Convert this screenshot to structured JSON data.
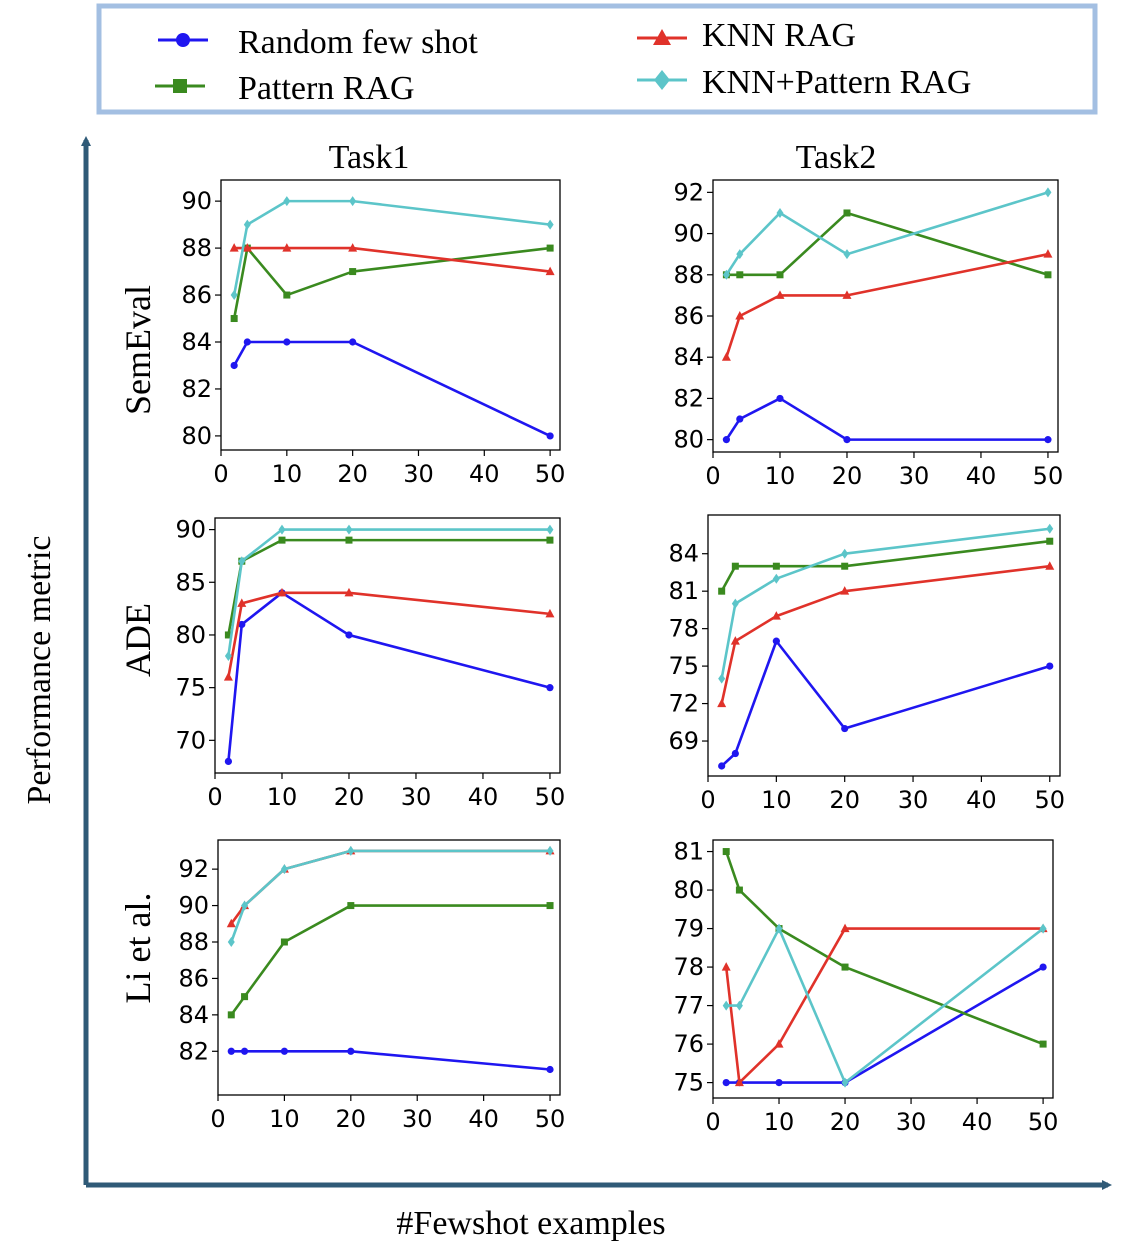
{
  "legend": {
    "entries": [
      {
        "label": "Random few shot",
        "color": "#1f16f0",
        "marker": "circle"
      },
      {
        "label": "Pattern RAG",
        "color": "#3a8a1f",
        "marker": "square"
      },
      {
        "label": "KNN RAG",
        "color": "#e0322a",
        "marker": "triangle"
      },
      {
        "label": "KNN+Pattern RAG",
        "color": "#5cc5c9",
        "marker": "diamond"
      }
    ],
    "border_color": "#a3bfe2"
  },
  "axes_labels": {
    "y": "Performance metric",
    "x": "#Fewshot examples",
    "col_titles": [
      "Task1",
      "Task2"
    ],
    "row_titles": [
      "SemEval",
      "ADE",
      "Li et al."
    ],
    "arrow_color": "#2f5a77"
  },
  "chart_data": [
    {
      "type": "line",
      "row": 0,
      "col": 0,
      "x": [
        2,
        4,
        10,
        20,
        50
      ],
      "xlim": [
        0,
        51.5
      ],
      "ylim": [
        79.4,
        90.9
      ],
      "xticks": [
        0,
        10,
        20,
        30,
        40,
        50
      ],
      "yticks": [
        80,
        82,
        84,
        86,
        88,
        90
      ],
      "series": [
        {
          "name": "Random few shot",
          "values": [
            83,
            84,
            84,
            84,
            80
          ]
        },
        {
          "name": "Pattern RAG",
          "values": [
            85,
            88,
            86,
            87,
            88
          ]
        },
        {
          "name": "KNN RAG",
          "values": [
            88,
            88,
            88,
            88,
            87
          ]
        },
        {
          "name": "KNN+Pattern RAG",
          "values": [
            86,
            89,
            90,
            90,
            89
          ]
        }
      ]
    },
    {
      "type": "line",
      "row": 0,
      "col": 1,
      "x": [
        2,
        4,
        10,
        20,
        50
      ],
      "xlim": [
        0,
        51.5
      ],
      "ylim": [
        79.4,
        92.6
      ],
      "xticks": [
        0,
        10,
        20,
        30,
        40,
        50
      ],
      "yticks": [
        80,
        82,
        84,
        86,
        88,
        90,
        92
      ],
      "series": [
        {
          "name": "Random few shot",
          "values": [
            80,
            81,
            82,
            80,
            80
          ]
        },
        {
          "name": "Pattern RAG",
          "values": [
            88,
            88,
            88,
            91,
            88
          ]
        },
        {
          "name": "KNN RAG",
          "values": [
            84,
            86,
            87,
            87,
            89
          ]
        },
        {
          "name": "KNN+Pattern RAG",
          "values": [
            88,
            89,
            91,
            89,
            92
          ]
        }
      ]
    },
    {
      "type": "line",
      "row": 1,
      "col": 0,
      "x": [
        2,
        4,
        10,
        20,
        50
      ],
      "xlim": [
        0,
        51.5
      ],
      "ylim": [
        66.9,
        91.1
      ],
      "xticks": [
        0,
        10,
        20,
        30,
        40,
        50
      ],
      "yticks": [
        70,
        75,
        80,
        85,
        90
      ],
      "series": [
        {
          "name": "Random few shot",
          "values": [
            68,
            81,
            84,
            80,
            75
          ]
        },
        {
          "name": "Pattern RAG",
          "values": [
            80,
            87,
            89,
            89,
            89
          ]
        },
        {
          "name": "KNN RAG",
          "values": [
            76,
            83,
            84,
            84,
            82
          ]
        },
        {
          "name": "KNN+Pattern RAG",
          "values": [
            78,
            87,
            90,
            90,
            90
          ]
        }
      ]
    },
    {
      "type": "line",
      "row": 1,
      "col": 1,
      "x": [
        2,
        4,
        10,
        20,
        50
      ],
      "xlim": [
        0,
        51.5
      ],
      "ylim": [
        66.2,
        87.1
      ],
      "xticks": [
        0,
        10,
        20,
        30,
        40,
        50
      ],
      "yticks": [
        69,
        72,
        75,
        78,
        81,
        84
      ],
      "series": [
        {
          "name": "Random few shot",
          "values": [
            67,
            68,
            77,
            70,
            75
          ]
        },
        {
          "name": "Pattern RAG",
          "values": [
            81,
            83,
            83,
            83,
            85
          ]
        },
        {
          "name": "KNN RAG",
          "values": [
            72,
            77,
            79,
            81,
            83
          ]
        },
        {
          "name": "KNN+Pattern RAG",
          "values": [
            74,
            80,
            82,
            84,
            86
          ]
        }
      ]
    },
    {
      "type": "line",
      "row": 2,
      "col": 0,
      "x": [
        2,
        4,
        10,
        20,
        50
      ],
      "xlim": [
        0,
        51.5
      ],
      "ylim": [
        79.6,
        93.6
      ],
      "xticks": [
        0,
        10,
        20,
        30,
        40,
        50
      ],
      "yticks": [
        82,
        84,
        86,
        88,
        90,
        92
      ],
      "series": [
        {
          "name": "Random few shot",
          "values": [
            82,
            82,
            82,
            82,
            81
          ]
        },
        {
          "name": "Pattern RAG",
          "values": [
            84,
            85,
            88,
            90,
            90
          ]
        },
        {
          "name": "KNN RAG",
          "values": [
            89,
            90,
            92,
            93,
            93
          ]
        },
        {
          "name": "KNN+Pattern RAG",
          "values": [
            88,
            90,
            92,
            93,
            93
          ]
        }
      ]
    },
    {
      "type": "line",
      "row": 2,
      "col": 1,
      "x": [
        2,
        4,
        10,
        20,
        50
      ],
      "xlim": [
        0,
        51.5
      ],
      "ylim": [
        74.6,
        81.3
      ],
      "xticks": [
        0,
        10,
        20,
        30,
        40,
        50
      ],
      "yticks": [
        75,
        76,
        77,
        78,
        79,
        80,
        81
      ],
      "series": [
        {
          "name": "Random few shot",
          "values": [
            75,
            75,
            75,
            75,
            78
          ]
        },
        {
          "name": "Pattern RAG",
          "values": [
            81,
            80,
            79,
            78,
            76
          ]
        },
        {
          "name": "KNN RAG",
          "values": [
            78,
            75,
            76,
            79,
            79
          ]
        },
        {
          "name": "KNN+Pattern RAG",
          "values": [
            77,
            77,
            79,
            75,
            79
          ]
        }
      ]
    }
  ]
}
